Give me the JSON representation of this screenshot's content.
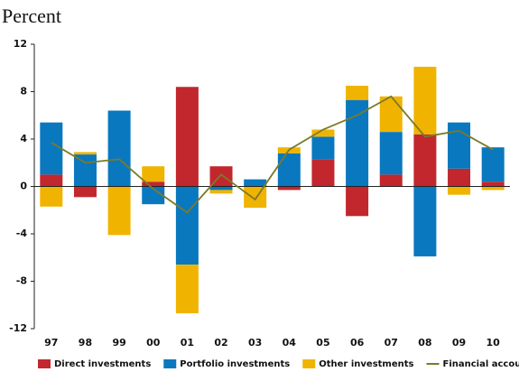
{
  "chart_data": {
    "type": "bar",
    "stacked": true,
    "title": "Percent",
    "categories": [
      "97",
      "98",
      "99",
      "00",
      "01",
      "02",
      "03",
      "04",
      "05",
      "06",
      "07",
      "08",
      "09",
      "10"
    ],
    "ylim": [
      -12,
      12
    ],
    "yticks": [
      -12,
      -8,
      -4,
      0,
      4,
      8,
      12
    ],
    "series": [
      {
        "name": "Direct investments",
        "color": "#c1272d",
        "values": [
          1.0,
          -0.9,
          0,
          0.4,
          8.4,
          1.7,
          0,
          -0.3,
          2.3,
          -2.5,
          1.0,
          4.4,
          1.5,
          0.4
        ]
      },
      {
        "name": "Portfolio investments",
        "color": "#0a78be",
        "values": [
          4.4,
          2.7,
          6.4,
          -1.5,
          -6.6,
          -0.3,
          0.6,
          2.8,
          1.9,
          7.3,
          3.6,
          -5.9,
          3.9,
          2.9
        ]
      },
      {
        "name": "Other investments",
        "color": "#f0b400",
        "values": [
          -1.7,
          0.2,
          -4.1,
          1.3,
          -4.1,
          -0.3,
          -1.8,
          0.5,
          0.6,
          1.2,
          3.0,
          5.7,
          -0.7,
          -0.3
        ]
      },
      {
        "name": "Financial accounts",
        "color": "#7a7a2a",
        "type": "line",
        "values": [
          3.7,
          2.0,
          2.3,
          -0.2,
          -2.2,
          1.0,
          -1.1,
          3.1,
          4.8,
          6.0,
          7.6,
          4.2,
          4.7,
          3.1
        ]
      }
    ]
  }
}
